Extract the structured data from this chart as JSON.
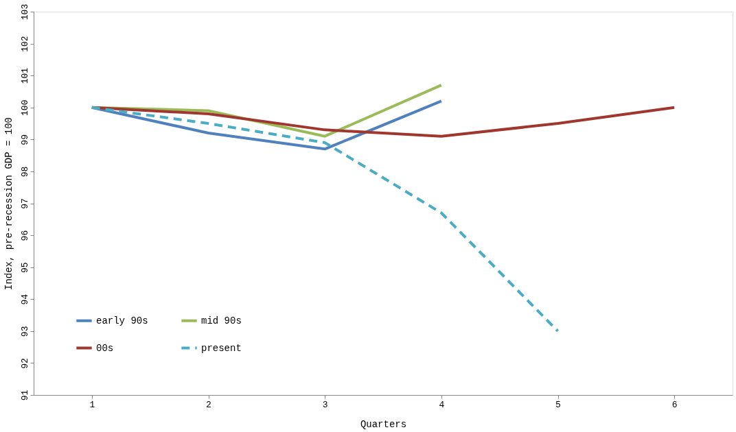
{
  "chart_data": {
    "type": "line",
    "xlabel": "Quarters",
    "ylabel": "Index, pre-recession GDP = 100",
    "categories": [
      "1",
      "2",
      "3",
      "4",
      "5",
      "6"
    ],
    "series": [
      {
        "name": "early 90s",
        "color": "#4f81bd",
        "values": [
          100,
          99.2,
          98.7,
          100.2,
          null,
          null
        ]
      },
      {
        "name": "mid 90s",
        "color": "#9bbb59",
        "values": [
          100,
          99.9,
          99.1,
          100.7,
          null,
          null
        ]
      },
      {
        "name": "00s",
        "color": "#a0372f",
        "values": [
          100,
          99.8,
          99.3,
          99.1,
          99.5,
          100
        ]
      },
      {
        "name": "present",
        "color": "#4bacc6",
        "line_style": "dashed",
        "values": [
          100,
          99.5,
          98.9,
          96.7,
          93.0,
          null
        ]
      }
    ],
    "ylim": [
      91,
      103
    ],
    "yticks": [
      91,
      92,
      93,
      94,
      95,
      96,
      97,
      98,
      99,
      100,
      101,
      102,
      103
    ],
    "grid": false,
    "legend": "bottom left",
    "line_style": "solid",
    "marker": "none"
  }
}
